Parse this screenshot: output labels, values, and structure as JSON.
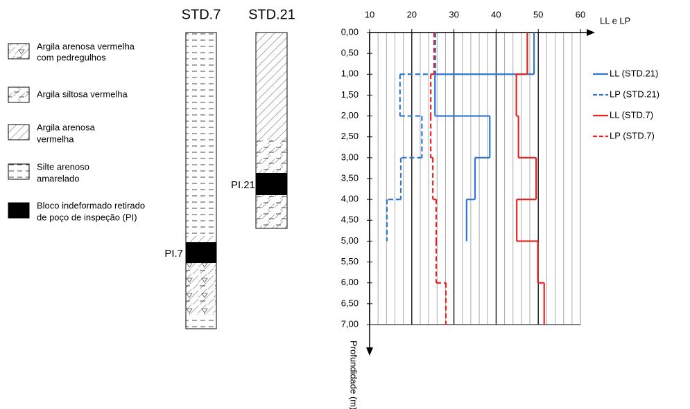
{
  "soil_legend": [
    {
      "lines": [
        "Argila arenosa vermelha",
        "com pedregulhos"
      ]
    },
    {
      "lines": [
        "Argila siltosa vermelha"
      ]
    },
    {
      "lines": [
        "Argila arenosa",
        "vermelha"
      ]
    },
    {
      "lines": [
        "Silte arenoso",
        "amarelado"
      ]
    },
    {
      "lines": [
        "Bloco indeformado retirado",
        "de poço de inspeção (PI)"
      ]
    }
  ],
  "boreholes": [
    {
      "name": "STD.7",
      "pi_label": "PI.7"
    },
    {
      "name": "STD.21",
      "pi_label": "PI.21"
    }
  ],
  "chart_data": {
    "type": "step",
    "x_label": "LL e LP",
    "y_label": "Profundidade (m)",
    "xlim": [
      10,
      60
    ],
    "xticks": [
      10,
      20,
      30,
      40,
      50,
      60
    ],
    "x_minor_ticks": [
      12,
      14,
      16,
      18,
      22,
      24,
      26,
      28,
      32,
      34,
      36,
      38,
      42,
      44,
      46,
      48,
      52,
      54,
      56,
      58
    ],
    "ylim": [
      0,
      7
    ],
    "yticks": [
      {
        "value": 0,
        "label": "0,00"
      },
      {
        "value": 0.5,
        "label": "0,50"
      },
      {
        "value": 1,
        "label": "1,00"
      },
      {
        "value": 1.5,
        "label": "1,50"
      },
      {
        "value": 2,
        "label": "2,00"
      },
      {
        "value": 2.5,
        "label": "2,50"
      },
      {
        "value": 3,
        "label": "3,00"
      },
      {
        "value": 3.5,
        "label": "3,50"
      },
      {
        "value": 4,
        "label": "4,00"
      },
      {
        "value": 4.5,
        "label": "4,50"
      },
      {
        "value": 5,
        "label": "5,00"
      },
      {
        "value": 5.5,
        "label": "5,50"
      },
      {
        "value": 6,
        "label": "6,00"
      },
      {
        "value": 6.5,
        "label": "6,50"
      },
      {
        "value": 7,
        "label": "7,00"
      }
    ],
    "depth_steps": [
      0,
      1,
      2,
      3,
      4,
      5,
      6,
      7
    ],
    "grid": true,
    "series": [
      {
        "name": "LL (STD.21)",
        "color": "#2e75d6",
        "dash": false,
        "values": [
          49,
          25.5,
          38.5,
          35,
          33,
          null,
          null
        ]
      },
      {
        "name": "LP (STD.21)",
        "color": "#2e75d6",
        "dash": true,
        "values": [
          25.6,
          17.2,
          22.4,
          17.4,
          14.1,
          null,
          null
        ]
      },
      {
        "name": "LL (STD.7)",
        "color": "#e8231f",
        "dash": false,
        "values": [
          47.4,
          44.8,
          45.3,
          49.5,
          44.9,
          49.9,
          51.4
        ]
      },
      {
        "name": "LP (STD.7)",
        "color": "#e8231f",
        "dash": true,
        "values": [
          25.3,
          24.5,
          24.5,
          25,
          25.8,
          25.8,
          28.1
        ]
      }
    ]
  }
}
